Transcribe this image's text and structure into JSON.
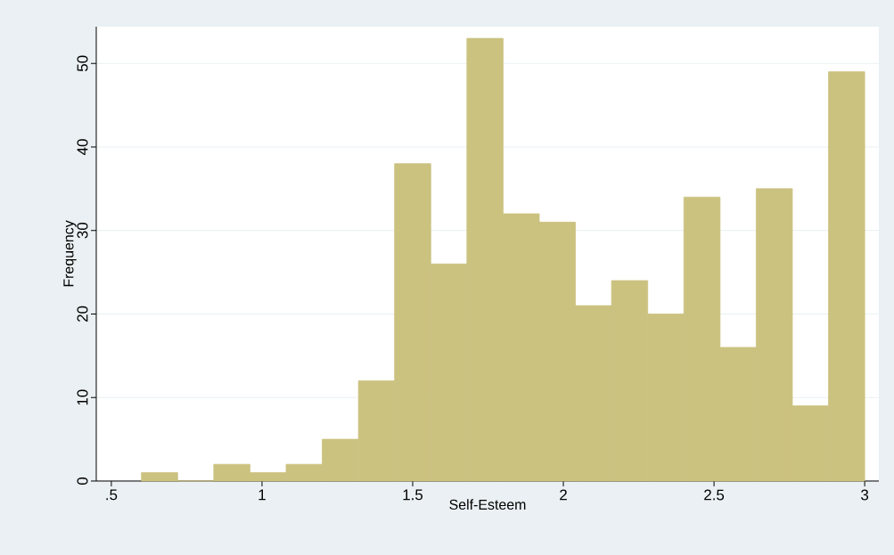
{
  "chart_data": {
    "type": "histogram",
    "xlabel": "Self-Esteem",
    "ylabel": "Frequency",
    "bins": [
      0.6,
      0.72,
      0.84,
      0.96,
      1.08,
      1.2,
      1.32,
      1.44,
      1.56,
      1.68,
      1.8,
      1.92,
      2.04,
      2.16,
      2.28,
      2.4,
      2.52,
      2.64,
      2.76,
      2.88,
      3.0
    ],
    "values": [
      1,
      0,
      2,
      1,
      2,
      5,
      12,
      38,
      26,
      53,
      32,
      31,
      21,
      24,
      20,
      34,
      16,
      35,
      9,
      49
    ],
    "color": "#cbc280",
    "xlim": [
      0.45,
      3.047
    ],
    "ylim": [
      0,
      54.4
    ],
    "xticks": [
      {
        "value": 0.5,
        "label": ".5"
      },
      1,
      1.5,
      2,
      2.5,
      3
    ],
    "yticks": [
      0,
      10,
      20,
      30,
      40,
      50
    ],
    "grid": "y"
  }
}
